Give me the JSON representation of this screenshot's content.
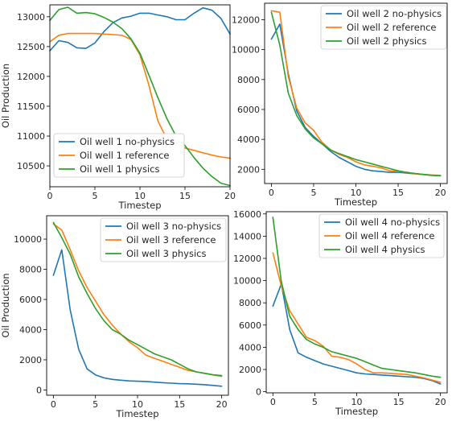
{
  "colors": {
    "no_physics": "#1f77b4",
    "reference": "#ff7f0e",
    "physics": "#2ca02c"
  },
  "chart_data": [
    {
      "type": "line",
      "xlabel": "Timestep",
      "ylabel": "Oil Production",
      "xlim": [
        0,
        20
      ],
      "ylim": [
        10150,
        13200
      ],
      "xticks": [
        0,
        5,
        10,
        15,
        20
      ],
      "yticks": [
        10500,
        11000,
        11500,
        12000,
        12500,
        13000
      ],
      "legend_position": "lower-left",
      "series": [
        {
          "name": "Oil well 1 no-physics",
          "color_key": "no_physics",
          "x": [
            0,
            1,
            2,
            3,
            4,
            5,
            6,
            7,
            8,
            9,
            10,
            11,
            12,
            13,
            14,
            15,
            16,
            17,
            18,
            19,
            20
          ],
          "y": [
            12430,
            12600,
            12570,
            12480,
            12470,
            12560,
            12750,
            12900,
            12980,
            13010,
            13060,
            13060,
            13030,
            13000,
            12950,
            12950,
            13060,
            13150,
            13110,
            12970,
            12710
          ]
        },
        {
          "name": "Oil well 1  reference",
          "color_key": "reference",
          "x": [
            0,
            1,
            2,
            3,
            4,
            5,
            6,
            7,
            8,
            9,
            10,
            11,
            12,
            13,
            14,
            15,
            16,
            17,
            18,
            19,
            20
          ],
          "y": [
            12580,
            12690,
            12720,
            12720,
            12720,
            12720,
            12710,
            12700,
            12690,
            12620,
            12360,
            11850,
            11250,
            10950,
            10850,
            10800,
            10760,
            10720,
            10680,
            10650,
            10630
          ]
        },
        {
          "name": "Oil well 1 physics",
          "color_key": "physics",
          "x": [
            0,
            1,
            2,
            3,
            4,
            5,
            6,
            7,
            8,
            9,
            10,
            11,
            12,
            13,
            14,
            15,
            16,
            17,
            18,
            19,
            20
          ],
          "y": [
            12940,
            13120,
            13160,
            13060,
            13070,
            13050,
            12990,
            12910,
            12800,
            12630,
            12390,
            12020,
            11640,
            11290,
            11000,
            10840,
            10640,
            10460,
            10320,
            10210,
            10170
          ]
        }
      ]
    },
    {
      "type": "line",
      "xlabel": "Timestep",
      "ylabel": "",
      "xlim": [
        -0.8,
        20.8
      ],
      "ylim": [
        1050,
        13100
      ],
      "xticks": [
        0,
        5,
        10,
        15,
        20
      ],
      "yticks": [
        2000,
        4000,
        6000,
        8000,
        10000,
        12000
      ],
      "legend_position": "upper-right",
      "series": [
        {
          "name": "Oil well 2 no-physics",
          "color_key": "no_physics",
          "x": [
            0,
            1,
            2,
            3,
            4,
            5,
            6,
            7,
            8,
            9,
            10,
            11,
            12,
            13,
            14,
            15,
            16,
            17,
            18,
            19,
            20
          ],
          "y": [
            10700,
            11700,
            8400,
            5900,
            4800,
            4200,
            3700,
            3200,
            2800,
            2500,
            2200,
            2000,
            1900,
            1850,
            1800,
            1800,
            1750,
            1700,
            1650,
            1600,
            1580
          ]
        },
        {
          "name": "Oil well 2 reference",
          "color_key": "reference",
          "x": [
            0,
            1,
            2,
            3,
            4,
            5,
            6,
            7,
            8,
            9,
            10,
            11,
            12,
            13,
            14,
            15,
            16,
            17,
            18,
            19,
            20
          ],
          "y": [
            12600,
            12500,
            8200,
            6100,
            5100,
            4600,
            3800,
            3300,
            3000,
            2800,
            2500,
            2300,
            2200,
            2100,
            1900,
            1850,
            1800,
            1700,
            1650,
            1620,
            1600
          ]
        },
        {
          "name": "Oil well 2 physics",
          "color_key": "physics",
          "x": [
            0,
            1,
            2,
            3,
            4,
            5,
            6,
            7,
            8,
            9,
            10,
            11,
            12,
            13,
            14,
            15,
            16,
            17,
            18,
            19,
            20
          ],
          "y": [
            12500,
            10300,
            7100,
            5600,
            4700,
            4100,
            3700,
            3300,
            3050,
            2850,
            2650,
            2500,
            2350,
            2200,
            2050,
            1900,
            1800,
            1720,
            1660,
            1600,
            1560
          ]
        }
      ]
    },
    {
      "type": "line",
      "xlabel": "Timestep",
      "ylabel": "Oil Production",
      "xlim": [
        -0.8,
        20.8
      ],
      "ylim": [
        -350,
        11550
      ],
      "xticks": [
        0,
        5,
        10,
        15,
        20
      ],
      "yticks": [
        0,
        2000,
        4000,
        6000,
        8000,
        10000
      ],
      "legend_position": "upper-right",
      "series": [
        {
          "name": "Oil well 3 no-physics",
          "color_key": "no_physics",
          "x": [
            0,
            1,
            2,
            3,
            4,
            5,
            6,
            7,
            8,
            9,
            10,
            11,
            12,
            13,
            14,
            15,
            16,
            17,
            18,
            19,
            20
          ],
          "y": [
            7600,
            9300,
            5300,
            2700,
            1400,
            1000,
            800,
            700,
            650,
            600,
            580,
            560,
            520,
            480,
            450,
            420,
            410,
            380,
            350,
            300,
            250
          ]
        },
        {
          "name": "Oil well 3 reference",
          "color_key": "reference",
          "x": [
            0,
            1,
            2,
            3,
            4,
            5,
            6,
            7,
            8,
            9,
            10,
            11,
            12,
            13,
            14,
            15,
            16,
            17,
            18,
            19,
            20
          ],
          "y": [
            11000,
            10600,
            9300,
            7900,
            6800,
            5900,
            5000,
            4300,
            3700,
            3200,
            2800,
            2300,
            2100,
            1900,
            1700,
            1500,
            1300,
            1200,
            1100,
            1000,
            900
          ]
        },
        {
          "name": "Oil well 3 physics",
          "color_key": "physics",
          "x": [
            0,
            1,
            2,
            3,
            4,
            5,
            6,
            7,
            8,
            9,
            10,
            11,
            12,
            13,
            14,
            15,
            16,
            17,
            18,
            19,
            20
          ],
          "y": [
            11100,
            10100,
            9000,
            7500,
            6400,
            5400,
            4600,
            4000,
            3700,
            3300,
            3000,
            2700,
            2400,
            2200,
            2000,
            1700,
            1400,
            1200,
            1100,
            1000,
            950
          ]
        }
      ]
    },
    {
      "type": "line",
      "xlabel": "Timestep",
      "ylabel": "",
      "xlim": [
        -0.8,
        20.8
      ],
      "ylim": [
        -100,
        16200
      ],
      "xticks": [
        0,
        5,
        10,
        15,
        20
      ],
      "yticks": [
        0,
        2000,
        4000,
        6000,
        8000,
        10000,
        12000,
        14000,
        16000
      ],
      "legend_position": "upper-right",
      "series": [
        {
          "name": "Oil well 4 no-physics",
          "color_key": "no_physics",
          "x": [
            0,
            1,
            2,
            3,
            4,
            5,
            6,
            7,
            8,
            9,
            10,
            11,
            12,
            13,
            14,
            15,
            16,
            17,
            18,
            19,
            20
          ],
          "y": [
            7700,
            9700,
            5600,
            3500,
            3100,
            2800,
            2500,
            2300,
            2100,
            1900,
            1700,
            1600,
            1550,
            1500,
            1450,
            1400,
            1350,
            1300,
            1200,
            1000,
            700
          ]
        },
        {
          "name": "Oil well 4 reference",
          "color_key": "reference",
          "x": [
            0,
            1,
            2,
            3,
            4,
            5,
            6,
            7,
            8,
            9,
            10,
            11,
            12,
            13,
            14,
            15,
            16,
            17,
            18,
            19,
            20
          ],
          "y": [
            12500,
            9500,
            7300,
            6100,
            4900,
            4600,
            4100,
            3200,
            3100,
            2900,
            2500,
            2000,
            1700,
            1700,
            1650,
            1600,
            1550,
            1400,
            1250,
            1050,
            850
          ]
        },
        {
          "name": "Oil well 4 physics",
          "color_key": "physics",
          "x": [
            0,
            1,
            2,
            3,
            4,
            5,
            6,
            7,
            8,
            9,
            10,
            11,
            12,
            13,
            14,
            15,
            16,
            17,
            18,
            19,
            20
          ],
          "y": [
            15700,
            9900,
            6800,
            5600,
            4700,
            4300,
            4000,
            3600,
            3400,
            3200,
            3000,
            2700,
            2400,
            2100,
            2000,
            1900,
            1800,
            1700,
            1550,
            1400,
            1300
          ]
        }
      ]
    }
  ]
}
